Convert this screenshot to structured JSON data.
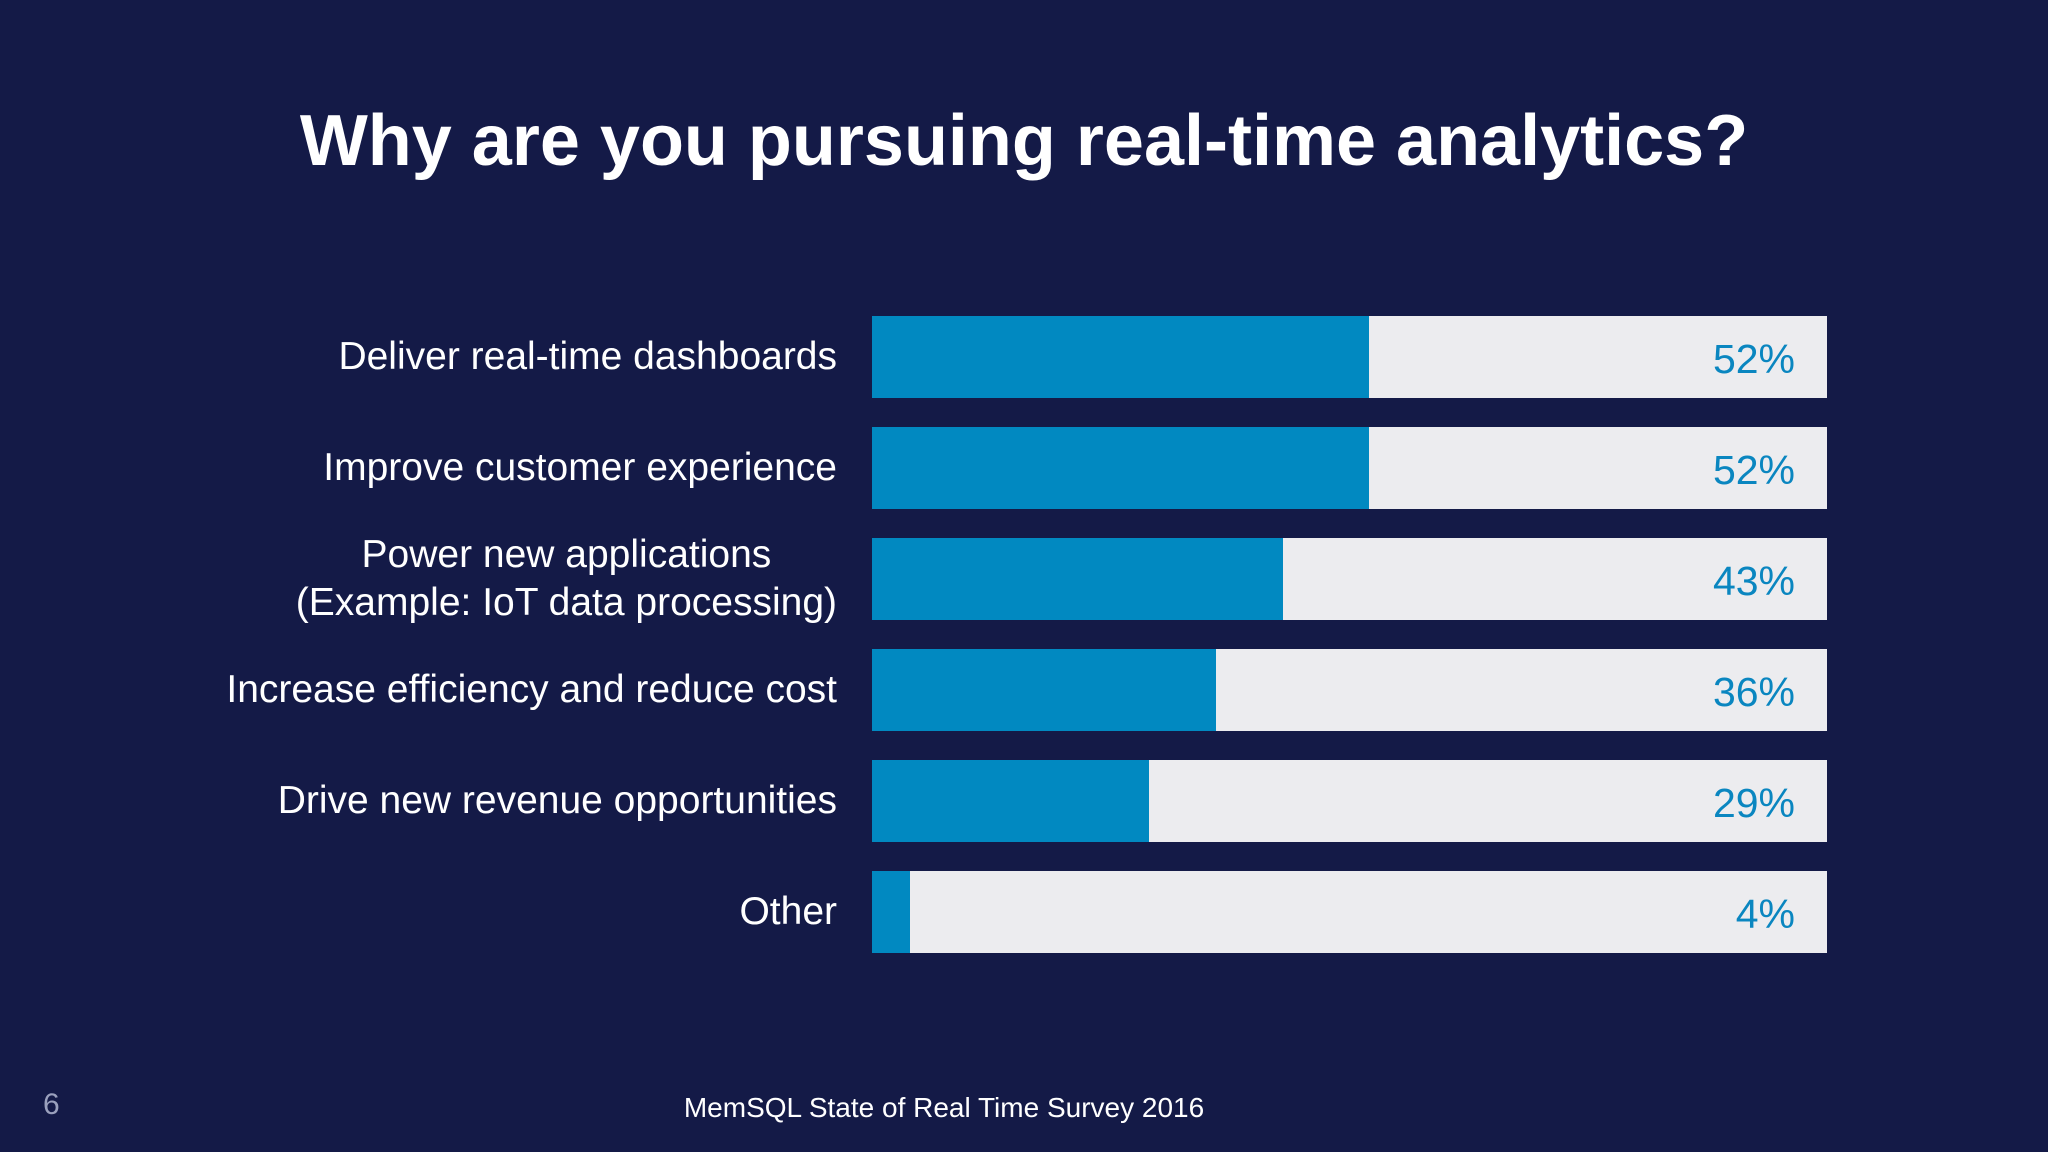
{
  "slide": {
    "title": "Why are you pursuing real-time analytics?",
    "page_number": "6",
    "source": "MemSQL State of Real Time Survey 2016"
  },
  "colors": {
    "background": "#141a47",
    "bar_fill": "#0189c1",
    "bar_track": "#ececef",
    "value_text": "#0a86c0",
    "label_text": "#ffffff"
  },
  "chart_data": {
    "type": "bar",
    "orientation": "horizontal",
    "title": "Why are you pursuing real-time analytics?",
    "categories": [
      "Deliver real-time dashboards",
      "Improve customer experience",
      "Power new applications\n(Example: IoT data processing)",
      "Increase efficiency and reduce cost",
      "Drive new revenue opportunities",
      "Other"
    ],
    "values": [
      52,
      52,
      43,
      36,
      29,
      4
    ],
    "value_labels": [
      "52%",
      "52%",
      "43%",
      "36%",
      "29%",
      "4%"
    ],
    "xlim": [
      0,
      100
    ],
    "grid": false,
    "legend": "none"
  }
}
